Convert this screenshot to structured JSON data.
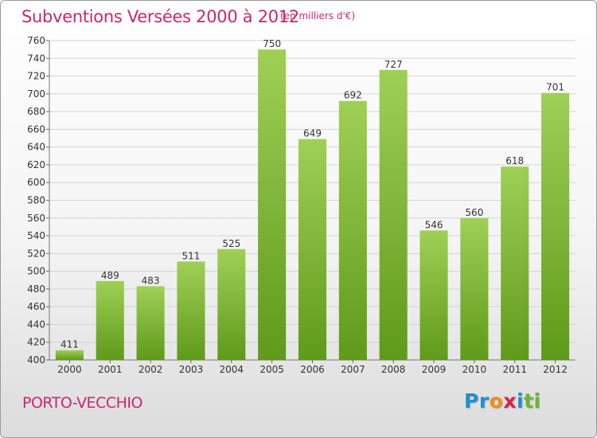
{
  "header": {
    "title": "Subventions Versées 2000 à 2012",
    "unit": "(en milliers d'€)"
  },
  "footer": {
    "city": "PORTO-VECCHIO",
    "logo": {
      "letters": [
        "P",
        "r",
        "o",
        "x",
        "i",
        "t",
        "i"
      ],
      "colors": [
        "#1f8fd1",
        "#1f8fd1",
        "#f08c1e",
        "#d8234a",
        "#1f8fd1",
        "#6ab52c",
        "#6ab52c"
      ]
    }
  },
  "colors": {
    "accent": "#c8286e",
    "bar_light": "#9fd056",
    "bar_dark": "#5f9a1a"
  },
  "chart_data": {
    "type": "bar",
    "categories": [
      "2000",
      "2001",
      "2002",
      "2003",
      "2004",
      "2005",
      "2006",
      "2007",
      "2008",
      "2009",
      "2010",
      "2011",
      "2012"
    ],
    "values": [
      411,
      489,
      483,
      511,
      525,
      750,
      649,
      692,
      727,
      546,
      560,
      618,
      701
    ],
    "ylim": [
      400,
      760
    ],
    "yticks": [
      400,
      420,
      440,
      460,
      480,
      500,
      520,
      540,
      560,
      580,
      600,
      620,
      640,
      660,
      680,
      700,
      720,
      740,
      760
    ],
    "grid": true,
    "title": "Subventions Versées 2000 à 2012",
    "xlabel": "",
    "ylabel": ""
  }
}
